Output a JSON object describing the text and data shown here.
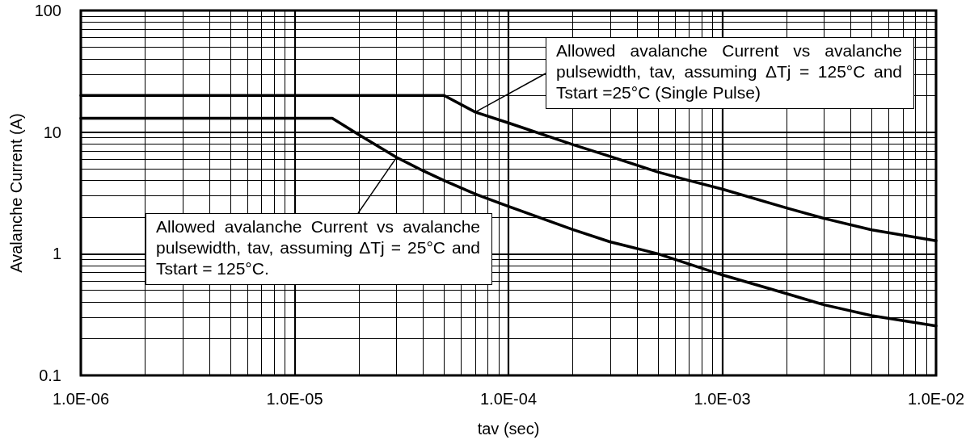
{
  "chart_data": {
    "type": "line",
    "xlabel": "tav (sec)",
    "ylabel": "Avalanche Current (A)",
    "log": "xy",
    "grid": true,
    "marker": "none",
    "line_style": "solid",
    "xlim": [
      1e-06,
      0.01
    ],
    "xticks": [
      {
        "value": 1e-06,
        "label": "1.0E-06"
      },
      {
        "value": 1e-05,
        "label": "1.0E-05"
      },
      {
        "value": 0.0001,
        "label": "1.0E-04"
      },
      {
        "value": 0.001,
        "label": "1.0E-03"
      },
      {
        "value": 0.01,
        "label": "1.0E-02"
      }
    ],
    "ylim": [
      0.1,
      100
    ],
    "yticks": [
      0.1,
      1,
      10,
      100
    ],
    "series": [
      {
        "color": "#000000",
        "x": [
          1e-06,
          5e-05,
          7e-05,
          0.0001,
          0.0002,
          0.0003,
          0.0005,
          0.0007,
          0.001,
          0.002,
          0.003,
          0.005,
          0.01
        ],
        "values": [
          20,
          20,
          14.6,
          11.9,
          7.9,
          6.3,
          4.7,
          4.0,
          3.4,
          2.38,
          1.95,
          1.57,
          1.28
        ]
      },
      {
        "color": "#000000",
        "x": [
          1e-06,
          1.5e-05,
          2e-05,
          3e-05,
          4e-05,
          5e-05,
          7e-05,
          0.0001,
          0.0002,
          0.0003,
          0.0005,
          0.001,
          0.002,
          0.003,
          0.005,
          0.01
        ],
        "values": [
          13,
          13,
          9.5,
          6.2,
          4.8,
          4.0,
          3.1,
          2.45,
          1.58,
          1.25,
          1.0,
          0.67,
          0.47,
          0.38,
          0.31,
          0.255
        ]
      }
    ],
    "annotations": [
      {
        "text": "Allowed avalanche Current vs avalanche pulsewidth, tav, assuming ΔTj = 125°C and Tstart =25°C (Single Pulse)",
        "x": 7e-05,
        "y": 14.6
      },
      {
        "text": "Allowed avalanche Current vs avalanche pulsewidth, tav, assuming ΔTj = 25°C and Tstart = 125°C.",
        "x": 3e-05,
        "y": 6.2
      }
    ]
  }
}
